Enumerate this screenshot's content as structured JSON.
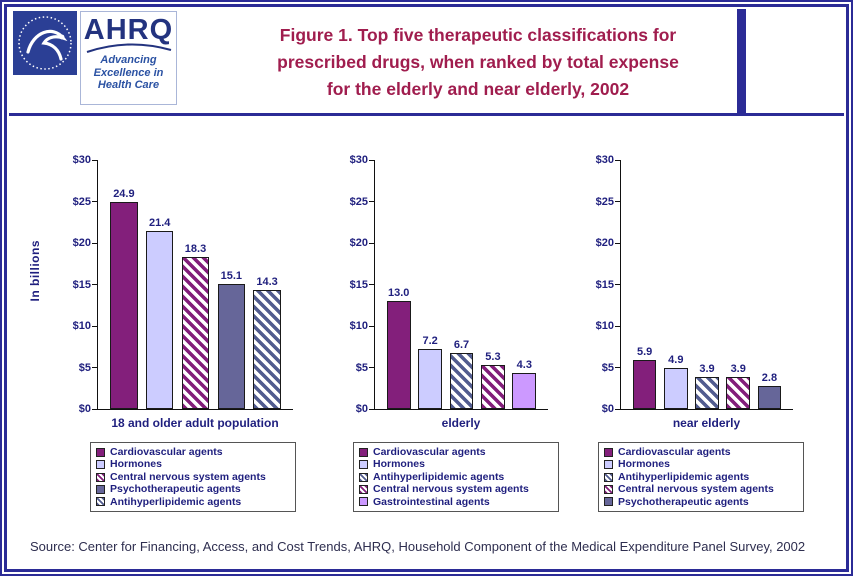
{
  "header": {
    "title_lines": [
      "Figure 1. Top five therapeutic classifications for",
      "prescribed drugs, when ranked by total expense",
      "for the elderly and near elderly, 2002"
    ],
    "logos": {
      "hhs_alt": "HHS seal",
      "ahrq_text": "AHRQ",
      "tagline_lines": [
        "Advancing",
        "Excellence in",
        "Health Care"
      ]
    }
  },
  "ylabel": "In billions",
  "source": "Source: Center for Financing, Access, and Cost Trends, AHRQ, Household Component of the Medical Expenditure Panel Survey, 2002",
  "colors": {
    "frame": "#2B2B96",
    "navy": "#1F1F7E",
    "title": "#A01D4E",
    "purple": "#831F7B",
    "lavender": "#CCCCFF",
    "slate": "#666699",
    "slate_hatch": "#525C8F",
    "light_violet": "#CC99FF",
    "logo_navy": "#23337F",
    "tagline_blue": "#2B52A3",
    "hhs_blue": "#2B3F95",
    "source_text": "#2E2E4F"
  },
  "chart_data": [
    {
      "type": "bar",
      "title": "18 and older adult population",
      "ylabel": "In billions",
      "ylim": [
        0,
        30
      ],
      "ytick_step": 5,
      "yticks": [
        "$0",
        "$5",
        "$10",
        "$15",
        "$20",
        "$25",
        "$30"
      ],
      "grid": false,
      "legend_position": "bottom",
      "series": [
        {
          "name": "Cardiovascular agents",
          "value": 24.9,
          "label": "24.9",
          "fill": "purple-solid"
        },
        {
          "name": "Hormones",
          "value": 21.4,
          "label": "21.4",
          "fill": "lavender-solid"
        },
        {
          "name": "Central nervous system agents",
          "value": 18.3,
          "label": "18.3",
          "fill": "purple-hatch"
        },
        {
          "name": "Psychotherapeutic agents",
          "value": 15.1,
          "label": "15.1",
          "fill": "slate-solid"
        },
        {
          "name": "Antihyperlipidemic agents",
          "value": 14.3,
          "label": "14.3",
          "fill": "slate-hatch"
        }
      ]
    },
    {
      "type": "bar",
      "title": "elderly",
      "ylabel": "In billions",
      "ylim": [
        0,
        30
      ],
      "ytick_step": 5,
      "yticks": [
        "$0",
        "$5",
        "$10",
        "$15",
        "$20",
        "$25",
        "$30"
      ],
      "grid": false,
      "legend_position": "bottom",
      "series": [
        {
          "name": "Cardiovascular agents",
          "value": 13.0,
          "label": "13.0",
          "fill": "purple-solid"
        },
        {
          "name": "Hormones",
          "value": 7.2,
          "label": "7.2",
          "fill": "lavender-solid"
        },
        {
          "name": "Antihyperlipidemic agents",
          "value": 6.7,
          "label": "6.7",
          "fill": "slate-hatch"
        },
        {
          "name": "Central nervous system agents",
          "value": 5.3,
          "label": "5.3",
          "fill": "purple-hatch"
        },
        {
          "name": "Gastrointestinal agents",
          "value": 4.3,
          "label": "4.3",
          "fill": "violet-solid"
        }
      ]
    },
    {
      "type": "bar",
      "title": "near elderly",
      "ylabel": "In billions",
      "ylim": [
        0,
        30
      ],
      "ytick_step": 5,
      "yticks": [
        "$0",
        "$5",
        "$10",
        "$15",
        "$20",
        "$25",
        "$30"
      ],
      "grid": false,
      "legend_position": "bottom",
      "series": [
        {
          "name": "Cardiovascular agents",
          "value": 5.9,
          "label": "5.9",
          "fill": "purple-solid"
        },
        {
          "name": "Hormones",
          "value": 4.9,
          "label": "4.9",
          "fill": "lavender-solid"
        },
        {
          "name": "Antihyperlipidemic agents",
          "value": 3.9,
          "label": "3.9",
          "fill": "slate-hatch"
        },
        {
          "name": "Central nervous system agents",
          "value": 3.9,
          "label": "3.9",
          "fill": "purple-hatch"
        },
        {
          "name": "Psychotherapeutic agents",
          "value": 2.8,
          "label": "2.8",
          "fill": "slate-solid"
        }
      ]
    }
  ]
}
